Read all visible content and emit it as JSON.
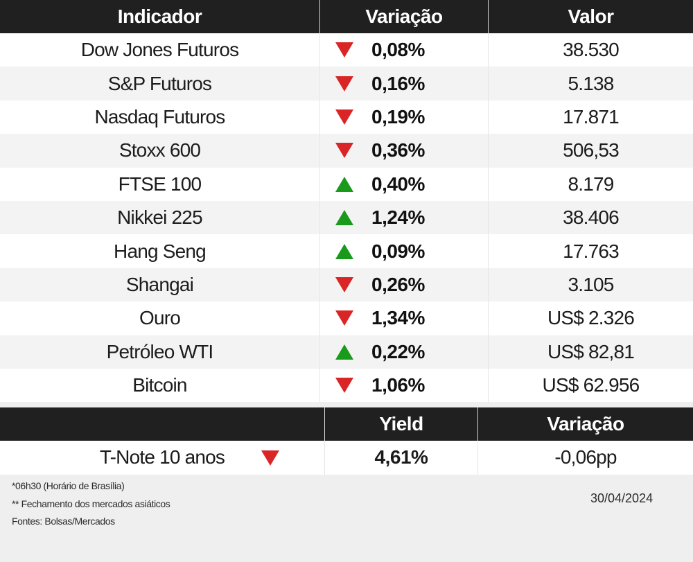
{
  "table": {
    "headers": [
      "Indicador",
      "Variação",
      "Valor"
    ],
    "rows": [
      {
        "name": "Dow Jones Futuros",
        "direction": "down",
        "variation": "0,08%",
        "value": "38.530"
      },
      {
        "name": "S&P Futuros",
        "direction": "down",
        "variation": "0,16%",
        "value": "5.138"
      },
      {
        "name": "Nasdaq Futuros",
        "direction": "down",
        "variation": "0,19%",
        "value": "17.871"
      },
      {
        "name": "Stoxx 600",
        "direction": "down",
        "variation": "0,36%",
        "value": "506,53"
      },
      {
        "name": "FTSE 100",
        "direction": "up",
        "variation": "0,40%",
        "value": "8.179"
      },
      {
        "name": "Nikkei 225",
        "direction": "up",
        "variation": "1,24%",
        "value": "38.406"
      },
      {
        "name": "Hang Seng",
        "direction": "up",
        "variation": "0,09%",
        "value": "17.763"
      },
      {
        "name": "Shangai",
        "direction": "down",
        "variation": "0,26%",
        "value": "3.105"
      },
      {
        "name": "Ouro",
        "direction": "down",
        "variation": "1,34%",
        "value": "US$ 2.326"
      },
      {
        "name": "Petróleo WTI",
        "direction": "up",
        "variation": "0,22%",
        "value": "US$ 82,81"
      },
      {
        "name": "Bitcoin",
        "direction": "down",
        "variation": "1,06%",
        "value": "US$ 62.956"
      }
    ]
  },
  "bonds": {
    "headers": [
      "",
      "Yield",
      "Variação"
    ],
    "rows": [
      {
        "name": "T-Note 10 anos",
        "direction": "down",
        "yield": "4,61%",
        "variation": "-0,06pp"
      }
    ]
  },
  "footer": {
    "notes": [
      "*06h30 (Horário de Brasília)",
      "** Fechamento dos mercados asiáticos",
      "Fontes: Bolsas/Mercados"
    ],
    "date": "30/04/2024"
  },
  "colors": {
    "header_bg": "#202020",
    "down": "#d92525",
    "up": "#1a9a1a",
    "row_alt": "#f3f3f3",
    "footer_bg": "#efefef"
  }
}
